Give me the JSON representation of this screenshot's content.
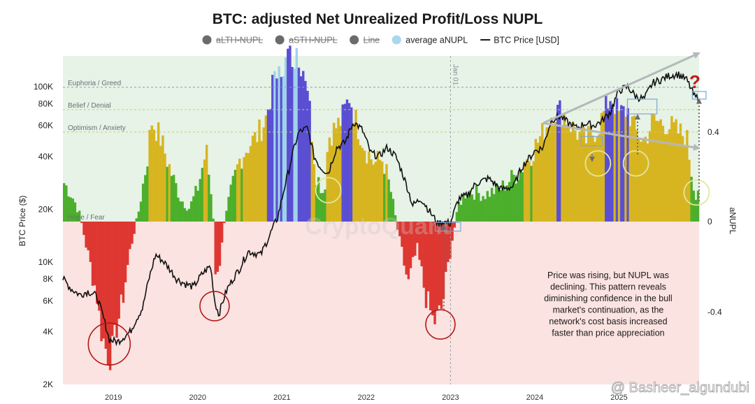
{
  "chart_data": {
    "type": "area",
    "title": "BTC: adjusted Net Unrealized Profit/Loss NUPL",
    "ylabel_left": "BTC Price ($)",
    "ylabel_right": "aNUPL",
    "x_ticks": [
      "2019",
      "2020",
      "2021",
      "2022",
      "2023",
      "2024",
      "2025"
    ],
    "x_range": [
      2018.4,
      2025.95
    ],
    "y_left_ticks": [
      "100K",
      "80K",
      "60K",
      "40K",
      "20K",
      "10K",
      "8K",
      "6K",
      "4K",
      "2K"
    ],
    "y_left_range": [
      2000,
      150000
    ],
    "y_right_ticks": [
      "0.4",
      "0",
      "-0.4"
    ],
    "y_right_range": [
      -0.72,
      0.74
    ],
    "zones": [
      {
        "label": "Euphoria / Greed",
        "level": 0.6
      },
      {
        "label": "Belief / Denial",
        "level": 0.5
      },
      {
        "label": "Optimism / Anxiety",
        "level": 0.4
      },
      {
        "label": "Hope / Fear",
        "level": 0.0
      }
    ],
    "vline_label": "Jan 01",
    "vline_x": 2023.0,
    "legend": [
      {
        "label": "aLTH-NUPL",
        "color": "#6b6b6b",
        "disabled": true
      },
      {
        "label": "aSTH-NUPL",
        "color": "#6b6b6b",
        "disabled": true
      },
      {
        "label": "Line",
        "color": "#6b6b6b",
        "disabled": true
      },
      {
        "label": "average aNUPL",
        "color": "#a9d7ee",
        "disabled": false
      },
      {
        "label": "BTC Price [USD]",
        "color": "#1a1a1a",
        "disabled": false,
        "line": true
      }
    ],
    "series": [
      {
        "name": "BTC Price [USD]",
        "x": [
          2018.4,
          2018.5,
          2018.6,
          2018.7,
          2018.8,
          2018.87,
          2018.95,
          2019.05,
          2019.2,
          2019.35,
          2019.45,
          2019.5,
          2019.6,
          2019.75,
          2019.85,
          2019.95,
          2020.05,
          2020.15,
          2020.2,
          2020.25,
          2020.35,
          2020.5,
          2020.6,
          2020.75,
          2020.85,
          2020.95,
          2021.0,
          2021.08,
          2021.2,
          2021.3,
          2021.38,
          2021.45,
          2021.55,
          2021.65,
          2021.75,
          2021.85,
          2021.95,
          2022.05,
          2022.15,
          2022.25,
          2022.35,
          2022.45,
          2022.55,
          2022.65,
          2022.75,
          2022.85,
          2022.9,
          2023.0,
          2023.1,
          2023.2,
          2023.3,
          2023.45,
          2023.6,
          2023.75,
          2023.85,
          2023.95,
          2024.0,
          2024.1,
          2024.2,
          2024.3,
          2024.4,
          2024.5,
          2024.6,
          2024.7,
          2024.8,
          2024.9,
          2025.0,
          2025.1,
          2025.2,
          2025.3,
          2025.4,
          2025.5,
          2025.6,
          2025.7,
          2025.8,
          2025.9
        ],
        "values": [
          8000,
          7000,
          6500,
          6800,
          6400,
          5000,
          3600,
          3500,
          4000,
          5500,
          9000,
          11000,
          10000,
          8000,
          7500,
          7200,
          8500,
          9500,
          6000,
          5000,
          7000,
          9200,
          11500,
          11000,
          14000,
          18000,
          23000,
          33000,
          55000,
          58000,
          40000,
          35000,
          32000,
          45000,
          48000,
          63000,
          57000,
          42000,
          40000,
          45000,
          40000,
          30000,
          21000,
          23000,
          19500,
          16500,
          17000,
          16600,
          23000,
          24000,
          28000,
          30000,
          26000,
          27000,
          35000,
          40000,
          43000,
          45000,
          65000,
          68000,
          62000,
          58000,
          62000,
          60000,
          64000,
          72000,
          95000,
          100000,
          88000,
          85000,
          105000,
          110000,
          116000,
          118000,
          110000,
          87000
        ]
      },
      {
        "name": "average aNUPL",
        "x": [
          2018.4,
          2018.5,
          2018.55,
          2018.6,
          2018.7,
          2018.8,
          2018.85,
          2018.9,
          2018.95,
          2019.1,
          2019.2,
          2019.3,
          2019.4,
          2019.45,
          2019.55,
          2019.7,
          2019.8,
          2019.9,
          2020.0,
          2020.1,
          2020.18,
          2020.22,
          2020.3,
          2020.4,
          2020.5,
          2020.6,
          2020.7,
          2020.8,
          2020.9,
          2021.0,
          2021.1,
          2021.2,
          2021.3,
          2021.4,
          2021.5,
          2021.55,
          2021.7,
          2021.8,
          2021.9,
          2022.0,
          2022.1,
          2022.2,
          2022.3,
          2022.4,
          2022.5,
          2022.6,
          2022.7,
          2022.8,
          2022.9,
          2023.0,
          2023.1,
          2023.2,
          2023.4,
          2023.6,
          2023.8,
          2023.95,
          2024.1,
          2024.2,
          2024.3,
          2024.45,
          2024.6,
          2024.75,
          2024.9,
          2025.0,
          2025.1,
          2025.2,
          2025.3,
          2025.4,
          2025.55,
          2025.7,
          2025.8,
          2025.9,
          2025.95
        ],
        "values": [
          0.18,
          0.12,
          0.08,
          0.03,
          -0.15,
          -0.32,
          -0.48,
          -0.55,
          -0.62,
          -0.36,
          -0.12,
          0.05,
          0.28,
          0.45,
          0.38,
          0.2,
          0.1,
          0.06,
          0.15,
          0.32,
          0.05,
          -0.3,
          -0.04,
          0.15,
          0.28,
          0.34,
          0.38,
          0.45,
          0.62,
          0.68,
          0.75,
          0.73,
          0.62,
          0.22,
          0.12,
          0.38,
          0.45,
          0.56,
          0.42,
          0.32,
          0.26,
          0.28,
          0.12,
          -0.1,
          -0.28,
          -0.12,
          -0.32,
          -0.45,
          -0.38,
          -0.12,
          0.08,
          0.14,
          0.12,
          0.15,
          0.22,
          0.3,
          0.4,
          0.48,
          0.5,
          0.42,
          0.36,
          0.42,
          0.56,
          0.48,
          0.5,
          0.4,
          0.36,
          0.45,
          0.44,
          0.4,
          0.38,
          0.12,
          0.16
        ]
      }
    ],
    "annotations": [
      {
        "text": "Price was rising, but NUPL was declining. This pattern reveals diminishing confidence in the bull market's continuation, as the network's cost basis increased faster than price appreciation"
      }
    ],
    "question_mark": "?",
    "watermark": "@ Basheer_algundubi",
    "mid_watermark": "CryptoQuant"
  }
}
